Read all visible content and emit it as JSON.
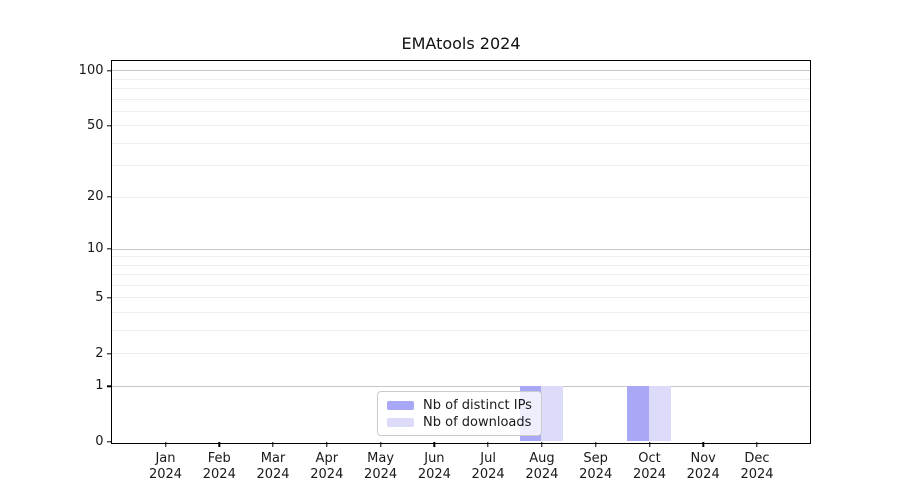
{
  "title": "EMAtools 2024",
  "chart_data": {
    "type": "bar",
    "title": "EMAtools 2024",
    "categories": [
      "Jan 2024",
      "Feb 2024",
      "Mar 2024",
      "Apr 2024",
      "May 2024",
      "Jun 2024",
      "Jul 2024",
      "Aug 2024",
      "Sep 2024",
      "Oct 2024",
      "Nov 2024",
      "Dec 2024"
    ],
    "series": [
      {
        "name": "Nb of distinct IPs",
        "color": "#a8a8f6",
        "values": [
          0,
          0,
          0,
          0,
          0,
          0,
          0,
          1,
          0,
          1,
          0,
          0
        ]
      },
      {
        "name": "Nb of downloads",
        "color": "#dcdcfa",
        "values": [
          0,
          0,
          0,
          0,
          0,
          0,
          0,
          1,
          0,
          1,
          0,
          0
        ]
      }
    ],
    "xlabel": "",
    "ylabel": "",
    "y_scale": "log1p",
    "ylim": [
      0,
      113
    ],
    "y_ticks": [
      0,
      1,
      2,
      5,
      10,
      20,
      50,
      100
    ],
    "y_minor_ticks": [
      3,
      4,
      6,
      7,
      8,
      9,
      30,
      40,
      60,
      70,
      80,
      90
    ],
    "y_major_gridlines": [
      1,
      10,
      100
    ],
    "grid": "both",
    "legend_position": "lower center",
    "colors": {
      "major_grid": "#c6c6c6",
      "minor_grid": "#eeeeee",
      "axis": "#000000",
      "background": "#ffffff"
    }
  }
}
